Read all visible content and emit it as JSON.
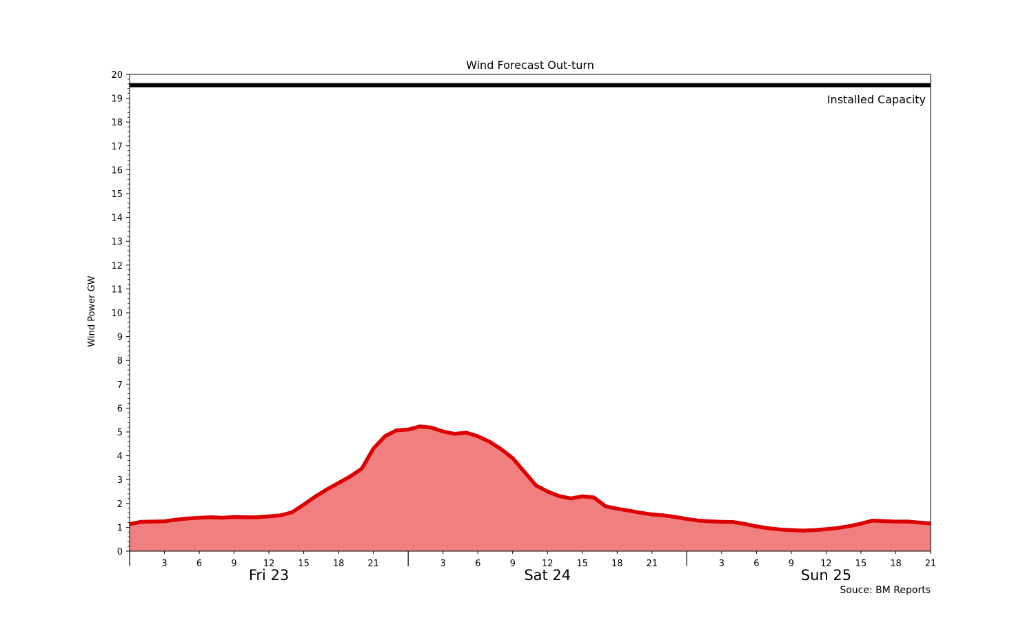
{
  "chart_data": {
    "type": "area",
    "title": "Wind Forecast Out-turn",
    "xlabel": "",
    "ylabel": "Wind Power GW",
    "ylim": [
      0,
      20
    ],
    "yticks": [
      0,
      1,
      2,
      3,
      4,
      5,
      6,
      7,
      8,
      9,
      10,
      11,
      12,
      13,
      14,
      15,
      16,
      17,
      18,
      19,
      20
    ],
    "x_hour_ticks": [
      {
        "hour": 3,
        "label": "3"
      },
      {
        "hour": 6,
        "label": "6"
      },
      {
        "hour": 9,
        "label": "9"
      },
      {
        "hour": 12,
        "label": "12"
      },
      {
        "hour": 15,
        "label": "15"
      },
      {
        "hour": 18,
        "label": "18"
      },
      {
        "hour": 21,
        "label": "21"
      },
      {
        "hour": 27,
        "label": "3"
      },
      {
        "hour": 30,
        "label": "6"
      },
      {
        "hour": 33,
        "label": "9"
      },
      {
        "hour": 36,
        "label": "12"
      },
      {
        "hour": 39,
        "label": "15"
      },
      {
        "hour": 42,
        "label": "18"
      },
      {
        "hour": 45,
        "label": "21"
      },
      {
        "hour": 51,
        "label": "3"
      },
      {
        "hour": 54,
        "label": "6"
      },
      {
        "hour": 57,
        "label": "9"
      },
      {
        "hour": 60,
        "label": "12"
      },
      {
        "hour": 63,
        "label": "15"
      },
      {
        "hour": 66,
        "label": "18"
      },
      {
        "hour": 69,
        "label": "21"
      }
    ],
    "days": [
      {
        "label": "Fri 23",
        "start": 0
      },
      {
        "label": "Sat 24",
        "start": 24
      },
      {
        "label": "Sun 25",
        "start": 48
      }
    ],
    "xlim": [
      0,
      69
    ],
    "series": [
      {
        "color": "#dd0000",
        "fill": "#f08080",
        "x": [
          0,
          1,
          2,
          3,
          4,
          5,
          6,
          7,
          8,
          9,
          10,
          11,
          12,
          13,
          14,
          15,
          16,
          17,
          18,
          19,
          20,
          21,
          22,
          23,
          24,
          25,
          26,
          27,
          28,
          29,
          30,
          31,
          32,
          33,
          34,
          35,
          36,
          37,
          38,
          39,
          40,
          41,
          42,
          43,
          44,
          45,
          46,
          47,
          48,
          49,
          50,
          51,
          52,
          53,
          54,
          55,
          56,
          57,
          58,
          59,
          60,
          61,
          62,
          63,
          64,
          65,
          66,
          67,
          68,
          69
        ],
        "values": [
          1.13,
          1.23,
          1.24,
          1.25,
          1.32,
          1.37,
          1.4,
          1.42,
          1.4,
          1.43,
          1.42,
          1.42,
          1.46,
          1.5,
          1.63,
          1.95,
          2.29,
          2.59,
          2.86,
          3.13,
          3.46,
          4.3,
          4.82,
          5.07,
          5.1,
          5.23,
          5.18,
          5.02,
          4.92,
          4.97,
          4.82,
          4.59,
          4.28,
          3.9,
          3.33,
          2.76,
          2.5,
          2.31,
          2.21,
          2.3,
          2.25,
          1.88,
          1.78,
          1.7,
          1.61,
          1.54,
          1.5,
          1.43,
          1.35,
          1.28,
          1.25,
          1.23,
          1.22,
          1.14,
          1.04,
          0.96,
          0.91,
          0.88,
          0.86,
          0.88,
          0.92,
          0.97,
          1.05,
          1.15,
          1.28,
          1.26,
          1.24,
          1.24,
          1.2,
          1.16
        ]
      }
    ],
    "reference_line": {
      "value": 19.55,
      "label": "Installed Capacity",
      "color": "#000000"
    },
    "grid": false,
    "source": "Souce: BM Reports"
  }
}
